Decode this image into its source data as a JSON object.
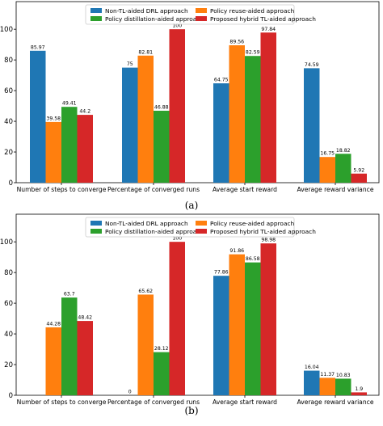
{
  "chart_data": [
    {
      "type": "bar",
      "caption": "(a)",
      "categories": [
        "Number of steps to converge",
        "Percentage of converged runs",
        "Average start reward",
        "Average reward variance"
      ],
      "series": [
        {
          "name": "Non-TL-aided DRL approach",
          "color": "#1f77b4",
          "values": [
            85.97,
            75,
            64.75,
            74.59
          ]
        },
        {
          "name": "Policy reuse-aided approach",
          "color": "#ff7f0e",
          "values": [
            39.58,
            82.81,
            89.56,
            16.75
          ]
        },
        {
          "name": "Policy distillation-aided approach",
          "color": "#2ca02c",
          "values": [
            49.41,
            46.88,
            82.59,
            18.82
          ]
        },
        {
          "name": "Proposed hybrid TL-aided approach",
          "color": "#d62728",
          "values": [
            44.2,
            100,
            97.84,
            5.92
          ]
        }
      ],
      "data_labels": [
        [
          "85.97",
          "75",
          "64.75",
          "74.59"
        ],
        [
          "39.58",
          "82.81",
          "89.56",
          "16.75"
        ],
        [
          "49.41",
          "46.88",
          "82.59",
          "18.82"
        ],
        [
          "44.2",
          "100",
          "97.84",
          "5.92"
        ]
      ],
      "yticks": [
        0,
        20,
        40,
        60,
        80,
        100
      ],
      "ylim": [
        0,
        118
      ],
      "legend": "top-center, 2 columns"
    },
    {
      "type": "bar",
      "caption": "(b)",
      "categories": [
        "Number of steps to converge",
        "Percentage of converged runs",
        "Average start reward",
        "Average reward variance"
      ],
      "series": [
        {
          "name": "Non-TL-aided DRL approach",
          "color": "#1f77b4",
          "values": [
            null,
            0,
            77.86,
            16.04
          ]
        },
        {
          "name": "Policy reuse-aided approach",
          "color": "#ff7f0e",
          "values": [
            44.28,
            65.62,
            91.86,
            11.37
          ]
        },
        {
          "name": "Policy distillation-aided approach",
          "color": "#2ca02c",
          "values": [
            63.7,
            28.12,
            86.58,
            10.83
          ]
        },
        {
          "name": "Proposed hybrid TL-aided approach",
          "color": "#d62728",
          "values": [
            48.42,
            100,
            98.98,
            1.9
          ]
        }
      ],
      "data_labels": [
        [
          "",
          "0",
          "77.86",
          "16.04"
        ],
        [
          "44.28",
          "65.62",
          "91.86",
          "11.37"
        ],
        [
          "63.7",
          "28.12",
          "86.58",
          "10.83"
        ],
        [
          "48.42",
          "100",
          "98.98",
          "1.9"
        ]
      ],
      "yticks": [
        0,
        20,
        40,
        60,
        80,
        100
      ],
      "ylim": [
        0,
        118
      ],
      "legend": "top-center, 2 columns"
    }
  ]
}
